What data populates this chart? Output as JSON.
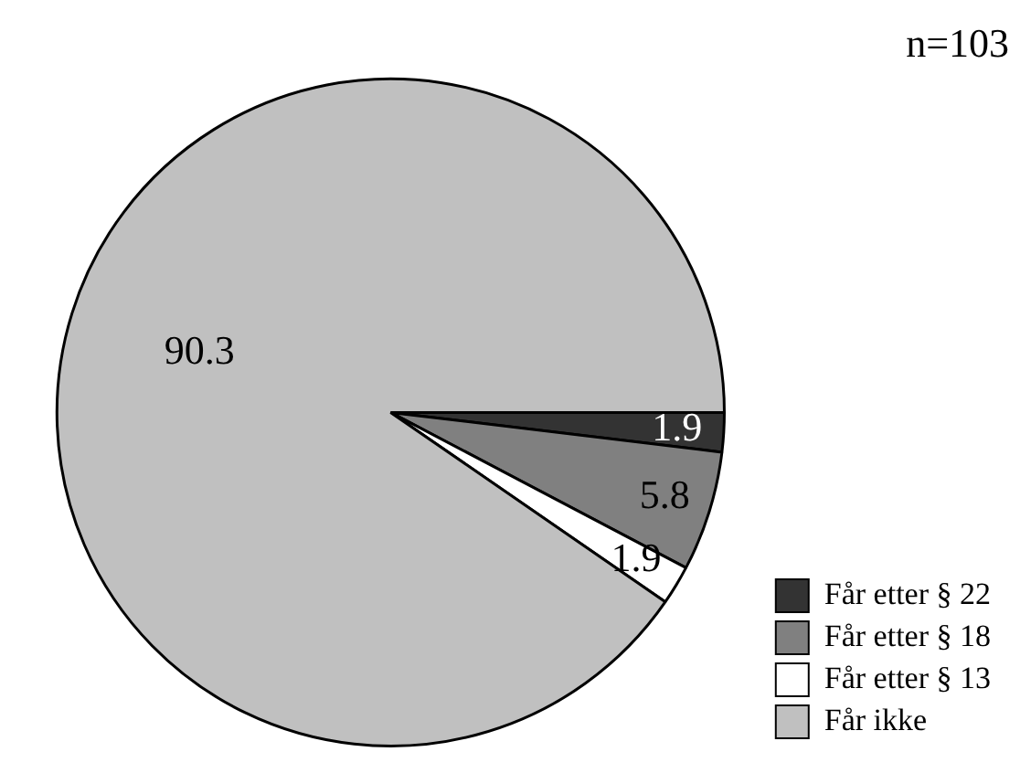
{
  "chart_data": {
    "type": "pie",
    "title": "n=103",
    "categories": [
      "Får etter § 22",
      "Får etter § 18",
      "Får etter § 13",
      "Får ikke"
    ],
    "values": [
      1.9,
      5.8,
      1.9,
      90.3
    ],
    "colors": [
      "#333333",
      "#808080",
      "#ffffff",
      "#c0c0c0"
    ],
    "data_labels": true,
    "legend": "bottom right"
  }
}
